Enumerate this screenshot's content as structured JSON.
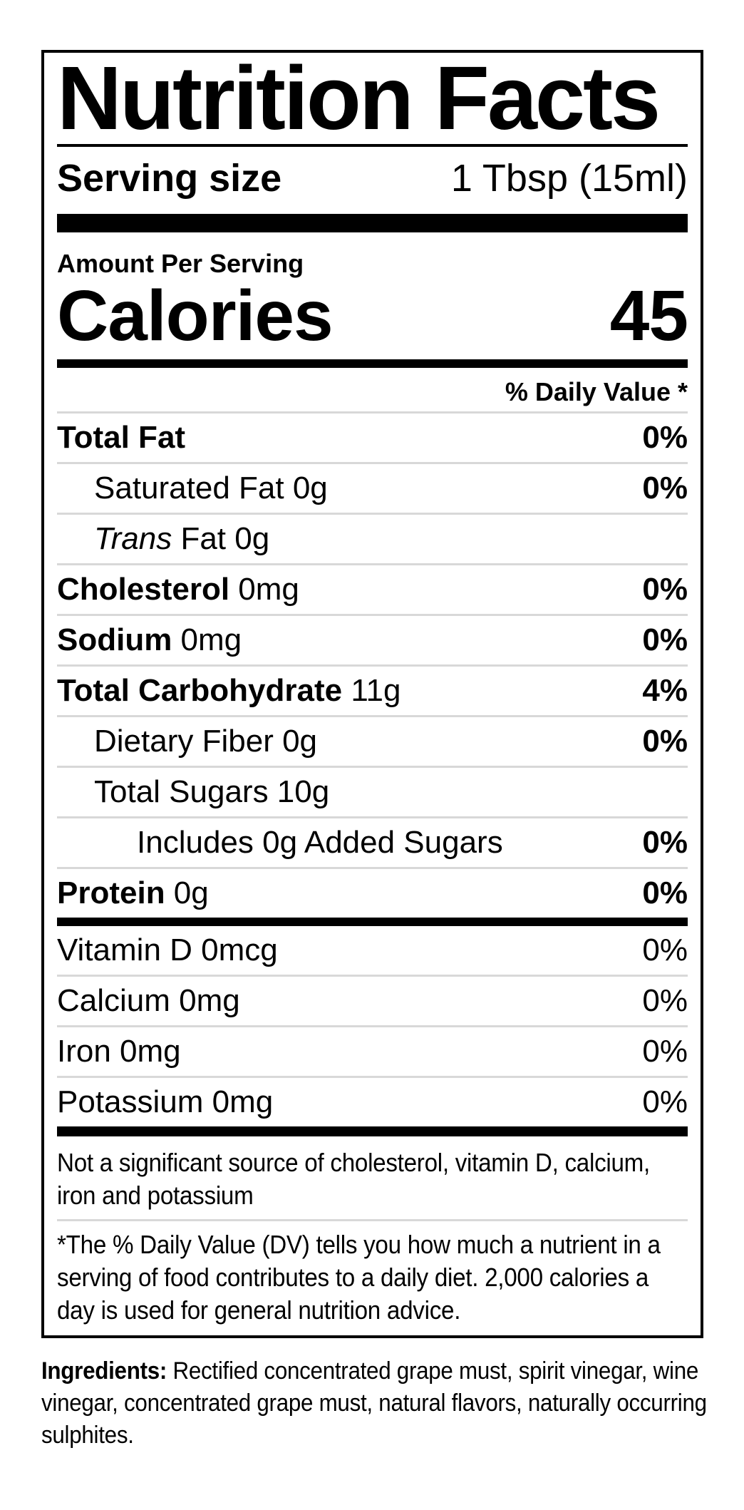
{
  "label": {
    "title": "Nutrition Facts",
    "serving": {
      "label": "Serving size",
      "value": "1 Tbsp (15ml)"
    },
    "amount_per_serving": "Amount Per Serving",
    "calories": {
      "label": "Calories",
      "value": "45"
    },
    "daily_value_header": "% Daily Value *",
    "rows": [
      {
        "name": "Total Fat",
        "amount": "",
        "dv": "0%"
      },
      {
        "name": "Saturated Fat 0g",
        "dv": "0%"
      },
      {
        "name_italic": "Trans",
        "name": " Fat 0g",
        "dv": ""
      },
      {
        "name": "Cholesterol",
        "amount": " 0mg",
        "dv": "0%"
      },
      {
        "name": "Sodium",
        "amount": " 0mg",
        "dv": "0%"
      },
      {
        "name": "Total Carbohydrate",
        "amount": " 11g",
        "dv": "4%"
      },
      {
        "name": "Dietary Fiber 0g",
        "dv": "0%"
      },
      {
        "name": "Total Sugars 10g",
        "dv": ""
      },
      {
        "name": "Includes 0g Added Sugars",
        "dv": "0%"
      },
      {
        "name": "Protein",
        "amount": " 0g",
        "dv": "0%"
      }
    ],
    "micros": [
      {
        "name": "Vitamin D 0mcg",
        "dv": "0%"
      },
      {
        "name": "Calcium 0mg",
        "dv": "0%"
      },
      {
        "name": "Iron 0mg",
        "dv": "0%"
      },
      {
        "name": "Potassium 0mg",
        "dv": "0%"
      }
    ],
    "not_significant": "Not a significant source of cholesterol, vitamin D, calcium, iron and potassium",
    "footnote": "*The % Daily Value (DV) tells you how much a nutrient in a serving of food contributes to a daily diet. 2,000 calories a day is used for general nutrition advice."
  },
  "ingredients": {
    "label": "Ingredients:",
    "text": " Rectified concentrated grape must, spirit vinegar, wine vinegar, concentrated grape must, natural flavors, naturally occurring sulphites."
  }
}
